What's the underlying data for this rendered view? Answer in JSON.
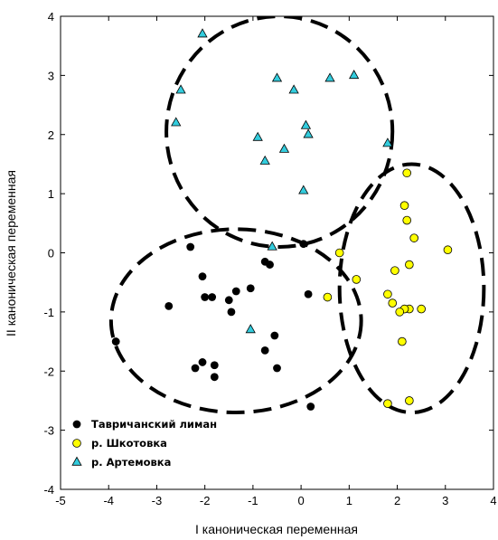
{
  "chart_data": {
    "type": "scatter",
    "xlabel": "I каноническая переменная",
    "ylabel": "II каноническая переменная",
    "xlim": [
      -5,
      4
    ],
    "ylim": [
      -4,
      4
    ],
    "xticks": [
      -5,
      -4,
      -3,
      -2,
      -1,
      0,
      1,
      2,
      3,
      4
    ],
    "yticks": [
      -4,
      -3,
      -2,
      -1,
      0,
      1,
      2,
      3,
      4
    ],
    "legend_position": "bottom-left",
    "series": [
      {
        "name": "Тавричанский лиман",
        "marker": "circle",
        "color": "#000000",
        "x": [
          -2.3,
          -2.05,
          -0.75,
          -0.65,
          0.05,
          -1.05,
          -2.75,
          -2.0,
          -1.85,
          -1.5,
          -1.35,
          0.15,
          -1.45,
          -3.85,
          -0.55,
          -0.75,
          -2.2,
          -2.05,
          -1.8,
          -1.8,
          -0.5,
          0.2
        ],
        "y": [
          0.1,
          -0.4,
          -0.15,
          -0.2,
          0.15,
          -0.6,
          -0.9,
          -0.75,
          -0.75,
          -0.8,
          -0.65,
          -0.7,
          -1.0,
          -1.5,
          -1.4,
          -1.65,
          -1.95,
          -1.85,
          -1.9,
          -2.1,
          -1.95,
          -2.6
        ]
      },
      {
        "name": "р. Шкотовка",
        "marker": "circle",
        "color": "#ffff00",
        "x": [
          2.2,
          2.15,
          2.2,
          2.35,
          0.8,
          0.55,
          1.15,
          2.25,
          1.95,
          3.05,
          1.8,
          1.9,
          2.25,
          2.5,
          2.15,
          2.05,
          2.1,
          1.8,
          2.25
        ],
        "y": [
          1.35,
          0.8,
          0.55,
          0.25,
          0.0,
          -0.75,
          -0.45,
          -0.2,
          -0.3,
          0.05,
          -0.7,
          -0.85,
          -0.95,
          -0.95,
          -0.95,
          -1.0,
          -1.5,
          -2.55,
          -2.5
        ]
      },
      {
        "name": "р. Артемовка",
        "marker": "triangle",
        "color": "#33ccdd",
        "x": [
          -2.05,
          -2.5,
          -0.5,
          0.6,
          1.1,
          -0.15,
          -2.6,
          0.1,
          0.15,
          -0.9,
          -0.35,
          -0.75,
          1.8,
          0.05,
          -0.6,
          -1.05
        ],
        "y": [
          3.7,
          2.75,
          2.95,
          2.95,
          3.0,
          2.75,
          2.2,
          2.15,
          2.0,
          1.95,
          1.75,
          1.55,
          1.85,
          1.05,
          0.1,
          -1.3
        ]
      }
    ],
    "ellipses": [
      {
        "group": "р. Артемовка",
        "cx": -0.45,
        "cy": 2.05,
        "rx": 2.35,
        "ry": 1.95
      },
      {
        "group": "Тавричанский лиман",
        "cx": -1.35,
        "cy": -1.15,
        "rx": 2.6,
        "ry": 1.55
      },
      {
        "group": "р. Шкотовка",
        "cx": 2.3,
        "cy": -0.6,
        "rx": 1.5,
        "ry": 2.1
      }
    ]
  }
}
